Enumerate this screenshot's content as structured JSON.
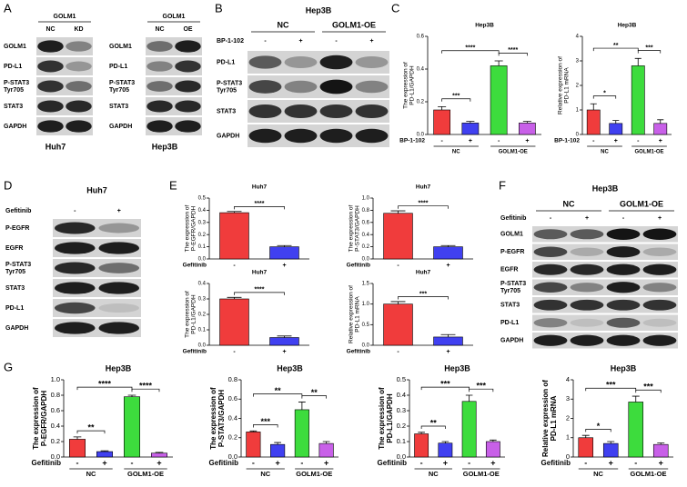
{
  "panel_labels": [
    "A",
    "B",
    "C",
    "D",
    "E",
    "F",
    "G"
  ],
  "blots": [
    {
      "header": "GOLM1",
      "lanes": [
        "NC",
        "KD"
      ],
      "rows": [
        [
          "GOLM1"
        ],
        [
          "PD-L1"
        ],
        [
          "P-STAT3",
          "Tyr705"
        ],
        [
          "STAT3"
        ],
        [
          "GAPDH"
        ]
      ],
      "cell_line": "Huh7"
    },
    {
      "header": "GOLM1",
      "lanes": [
        "NC",
        "OE"
      ],
      "rows": [
        [
          "GOLM1"
        ],
        [
          "PD-L1"
        ],
        [
          "P-STAT3",
          "Tyr705"
        ],
        [
          "STAT3"
        ],
        [
          "GAPDH"
        ]
      ],
      "cell_line": "Hep3B"
    },
    {
      "title": "Hep3B",
      "groups": [
        "NC",
        "GOLM1-OE"
      ],
      "treatment": "BP-1-102",
      "lanes": [
        "-",
        "+",
        "-",
        "+"
      ],
      "rows": [
        [
          "PD-L1"
        ],
        [
          "P-STAT3",
          "Tyr705"
        ],
        [
          "STAT3"
        ],
        [
          "GAPDH"
        ]
      ]
    },
    {
      "title": "Huh7",
      "treatment": "Gefitinib",
      "lanes": [
        "-",
        "+"
      ],
      "rows": [
        [
          "P-EGFR"
        ],
        [
          "EGFR"
        ],
        [
          "P-STAT3",
          "Tyr705"
        ],
        [
          "STAT3"
        ],
        [
          "PD-L1"
        ],
        [
          "GAPDH"
        ]
      ]
    },
    {
      "title": "Hep3B",
      "groups": [
        "NC",
        "GOLM1-OE"
      ],
      "treatment": "Gefitinib",
      "lanes": [
        "-",
        "+",
        "-",
        "+"
      ],
      "rows": [
        [
          "GOLM1"
        ],
        [
          "P-EGFR"
        ],
        [
          "EGFR"
        ],
        [
          "P-STAT3",
          "Tyr705"
        ],
        [
          "STAT3"
        ],
        [
          "PD-L1"
        ],
        [
          "GAPDH"
        ]
      ]
    }
  ],
  "chart_data": [
    {
      "type": "bar",
      "title": "Hep3B",
      "ylabel": [
        "The expression of",
        "PD-L1/GAPDH"
      ],
      "treatment": "BP-1-102",
      "categories": [
        "-",
        "+",
        "-",
        "+"
      ],
      "groups": [
        "NC",
        "GOLM1-OE"
      ],
      "values": [
        0.15,
        0.07,
        0.42,
        0.07
      ],
      "errors": [
        0.02,
        0.01,
        0.03,
        0.01
      ],
      "colors": [
        "#f03c3c",
        "#4040f0",
        "#3ddc3d",
        "#c860e8"
      ],
      "ylim": [
        0,
        0.6
      ],
      "yticks": [
        {
          "value": 0,
          "label": "0.0"
        },
        0.2,
        0.4,
        0.6
      ],
      "significance": [
        "***",
        "****",
        "****"
      ]
    },
    {
      "type": "bar",
      "title": "Hep3B",
      "ylabel": [
        "Relative expression of",
        "PD-L1 mRNA"
      ],
      "treatment": "BP-1-102",
      "categories": [
        "-",
        "+",
        "-",
        "+"
      ],
      "groups": [
        "NC",
        "GOLM1-OE"
      ],
      "values": [
        1.0,
        0.45,
        2.8,
        0.45
      ],
      "errors": [
        0.25,
        0.12,
        0.3,
        0.15
      ],
      "colors": [
        "#f03c3c",
        "#4040f0",
        "#3ddc3d",
        "#c860e8"
      ],
      "ylim": [
        0,
        4
      ],
      "yticks": [
        0,
        1,
        2,
        3,
        4
      ],
      "significance": [
        "*",
        "**",
        "***"
      ]
    },
    {
      "type": "bar",
      "title": "Huh7",
      "ylabel": [
        "The expression of",
        "P-EGFR/GAPDH"
      ],
      "treatment": "Gefitinib",
      "categories": [
        "-",
        "+"
      ],
      "values": [
        0.38,
        0.1
      ],
      "errors": [
        0.01,
        0.01
      ],
      "colors": [
        "#f03c3c",
        "#4040f0"
      ],
      "ylim": [
        0,
        0.5
      ],
      "yticks": [
        {
          "value": 0,
          "label": "0.0"
        },
        0.1,
        0.2,
        0.3,
        0.4,
        0.5
      ],
      "significance": [
        "****"
      ]
    },
    {
      "type": "bar",
      "title": "Huh7",
      "ylabel": [
        "The expression of",
        "P-STAT3/GAPDH"
      ],
      "treatment": "Gefitinib",
      "categories": [
        "-",
        "+"
      ],
      "values": [
        0.75,
        0.2
      ],
      "errors": [
        0.04,
        0.02
      ],
      "colors": [
        "#f03c3c",
        "#4040f0"
      ],
      "ylim": [
        0,
        1.0
      ],
      "yticks": [
        {
          "value": 0,
          "label": "0.0"
        },
        0.2,
        0.4,
        0.6,
        0.8,
        {
          "value": 1,
          "label": "1.0"
        }
      ],
      "significance": [
        "****"
      ]
    },
    {
      "type": "bar",
      "title": "Huh7",
      "ylabel": [
        "The expression of",
        "PD-L1/GAPDH"
      ],
      "treatment": "Gefitinib",
      "categories": [
        "-",
        "+"
      ],
      "values": [
        0.3,
        0.05
      ],
      "errors": [
        0.01,
        0.01
      ],
      "colors": [
        "#f03c3c",
        "#4040f0"
      ],
      "ylim": [
        0,
        0.4
      ],
      "yticks": [
        {
          "value": 0,
          "label": "0.0"
        },
        0.1,
        0.2,
        0.3,
        0.4
      ],
      "significance": [
        "****"
      ]
    },
    {
      "type": "bar",
      "title": "Huh7",
      "ylabel": [
        "Relative expression of",
        "PD-L1 mRNA"
      ],
      "treatment": "Gefitinib",
      "categories": [
        "-",
        "+"
      ],
      "values": [
        1.0,
        0.2
      ],
      "errors": [
        0.06,
        0.06
      ],
      "colors": [
        "#f03c3c",
        "#4040f0"
      ],
      "ylim": [
        0,
        1.5
      ],
      "yticks": [
        {
          "value": 0,
          "label": "0.0"
        },
        0.5,
        {
          "value": 1,
          "label": "1.0"
        },
        1.5
      ],
      "significance": [
        "***"
      ]
    },
    {
      "type": "bar",
      "title": "Hep3B",
      "ylabel": [
        "The expression of",
        "P-EGFR/GAPDH"
      ],
      "treatment": "Gefitinib",
      "categories": [
        "-",
        "+",
        "-",
        "+"
      ],
      "groups": [
        "NC",
        "GOLM1-OE"
      ],
      "values": [
        0.23,
        0.07,
        0.78,
        0.05
      ],
      "errors": [
        0.03,
        0.01,
        0.02,
        0.01
      ],
      "colors": [
        "#f03c3c",
        "#4040f0",
        "#3ddc3d",
        "#c860e8"
      ],
      "ylim": [
        0,
        1.0
      ],
      "yticks": [
        {
          "value": 0,
          "label": "0.0"
        },
        0.2,
        0.4,
        0.6,
        0.8,
        {
          "value": 1,
          "label": "1.0"
        }
      ],
      "significance": [
        "**",
        "****",
        "****"
      ]
    },
    {
      "type": "bar",
      "title": "Hep3B",
      "ylabel": [
        "The expression of",
        "P-STAT3/GAPDH"
      ],
      "treatment": "Gefitinib",
      "categories": [
        "-",
        "+",
        "-",
        "+"
      ],
      "groups": [
        "NC",
        "GOLM1-OE"
      ],
      "values": [
        0.26,
        0.13,
        0.49,
        0.14
      ],
      "errors": [
        0.01,
        0.02,
        0.08,
        0.02
      ],
      "colors": [
        "#f03c3c",
        "#4040f0",
        "#3ddc3d",
        "#c860e8"
      ],
      "ylim": [
        0,
        0.8
      ],
      "yticks": [
        {
          "value": 0,
          "label": "0.0"
        },
        0.2,
        0.4,
        0.6,
        0.8
      ],
      "significance": [
        "***",
        "**",
        "**"
      ]
    },
    {
      "type": "bar",
      "title": "Hep3B",
      "ylabel": [
        "The expression of",
        "PD-L1/GAPDH"
      ],
      "treatment": "Gefitinib",
      "categories": [
        "-",
        "+",
        "-",
        "+"
      ],
      "groups": [
        "NC",
        "GOLM1-OE"
      ],
      "values": [
        0.15,
        0.09,
        0.36,
        0.1
      ],
      "errors": [
        0.01,
        0.01,
        0.04,
        0.01
      ],
      "colors": [
        "#f03c3c",
        "#4040f0",
        "#3ddc3d",
        "#c860e8"
      ],
      "ylim": [
        0,
        0.5
      ],
      "yticks": [
        {
          "value": 0,
          "label": "0.0"
        },
        0.1,
        0.2,
        0.3,
        0.4,
        0.5
      ],
      "significance": [
        "**",
        "***",
        "***"
      ]
    },
    {
      "type": "bar",
      "title": "Hep3B",
      "ylabel": [
        "Relative expression of",
        "PD-L1 mRNA"
      ],
      "treatment": "Gefitinib",
      "categories": [
        "-",
        "+",
        "-",
        "+"
      ],
      "groups": [
        "NC",
        "GOLM1-OE"
      ],
      "values": [
        1.0,
        0.7,
        2.85,
        0.65
      ],
      "errors": [
        0.12,
        0.1,
        0.3,
        0.08
      ],
      "colors": [
        "#f03c3c",
        "#4040f0",
        "#3ddc3d",
        "#c860e8"
      ],
      "ylim": [
        0,
        4
      ],
      "yticks": [
        0,
        1,
        2,
        3,
        4
      ],
      "significance": [
        "*",
        "***",
        "***"
      ]
    }
  ]
}
